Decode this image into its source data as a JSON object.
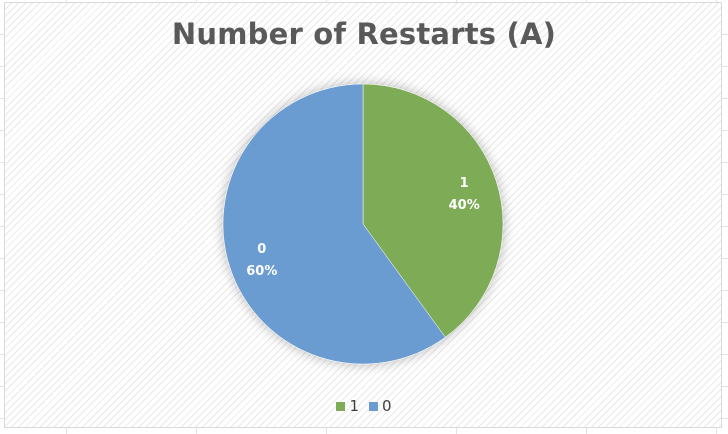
{
  "chart_data": {
    "type": "pie",
    "title": "Number of Restarts (A)",
    "categories": [
      "1",
      "0"
    ],
    "values": [
      40,
      60
    ],
    "value_labels": [
      "40%",
      "60%"
    ],
    "colors": [
      "#7eab55",
      "#6a9bd1"
    ],
    "legend_position": "bottom"
  }
}
